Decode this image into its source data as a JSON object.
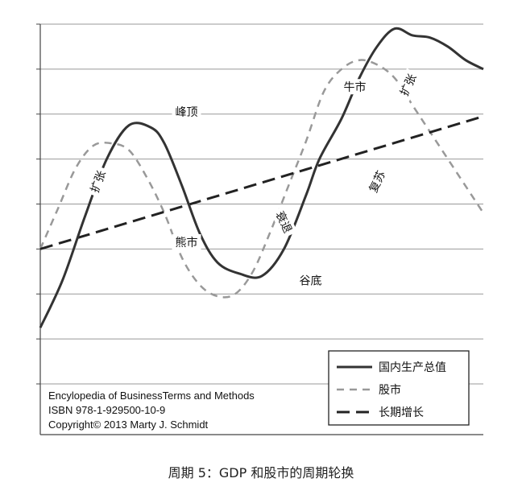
{
  "chart_data": {
    "type": "line",
    "title": "",
    "xlabel": "",
    "ylabel": "",
    "xlim": [
      0,
      100
    ],
    "ylim": [
      0,
      8
    ],
    "grid": true,
    "legend_position": "bottom-right",
    "series": [
      {
        "name": "国内生产总值",
        "style": "solid",
        "color": "#333333",
        "x": [
          0,
          5,
          10,
          15,
          20,
          25,
          28,
          32,
          36,
          40,
          45,
          50,
          55,
          60,
          63,
          68,
          72,
          76,
          80,
          84,
          88,
          92,
          96,
          100
        ],
        "y": [
          1.25,
          2.3,
          3.7,
          5.0,
          5.75,
          5.7,
          5.35,
          4.4,
          3.35,
          2.7,
          2.45,
          2.4,
          3.0,
          4.2,
          5.0,
          5.9,
          6.8,
          7.5,
          7.9,
          7.75,
          7.7,
          7.5,
          7.2,
          7.0
        ]
      },
      {
        "name": "股市",
        "style": "dashed",
        "color": "#999999",
        "x": [
          0,
          4,
          8,
          12,
          16,
          20,
          24,
          28,
          32,
          36,
          40,
          44,
          48,
          52,
          56,
          60,
          64,
          68,
          72,
          76,
          80,
          84,
          88,
          92,
          96,
          100
        ],
        "y": [
          3.0,
          3.9,
          4.8,
          5.3,
          5.35,
          5.2,
          4.6,
          3.8,
          2.8,
          2.2,
          1.95,
          2.0,
          2.5,
          3.4,
          4.4,
          5.4,
          6.5,
          7.0,
          7.2,
          7.1,
          6.8,
          6.2,
          5.6,
          5.0,
          4.4,
          3.8
        ]
      },
      {
        "name": "长期增长",
        "style": "long-dash",
        "color": "#222222",
        "x": [
          0,
          100
        ],
        "y": [
          3.0,
          5.95
        ]
      }
    ],
    "annotations": [
      {
        "text": "峰顶",
        "x": 33,
        "y": 6.05
      },
      {
        "text": "扩张",
        "x": 13,
        "y": 4.5,
        "rotate": -70
      },
      {
        "text": "衰退",
        "x": 55,
        "y": 3.6,
        "rotate": 65
      },
      {
        "text": "谷底",
        "x": 61,
        "y": 2.3
      },
      {
        "text": "熊市",
        "x": 33,
        "y": 3.15
      },
      {
        "text": "复苏",
        "x": 76,
        "y": 4.5,
        "rotate": -65
      },
      {
        "text": "牛市",
        "x": 71,
        "y": 6.6
      },
      {
        "text": "扩张",
        "x": 83,
        "y": 6.65,
        "rotate": -65
      }
    ]
  },
  "credit": {
    "line1": "Encylopedia of BusinessTerms and Methods",
    "line2": "ISBN 978-1-929500-10-9",
    "line3": "Copyright© 2013 Marty J. Schmidt"
  },
  "caption": "周期 5：GDP 和股市的周期轮换"
}
